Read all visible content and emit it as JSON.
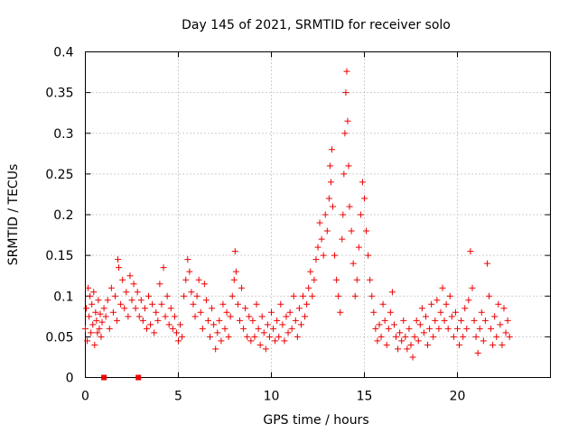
{
  "chart_data": {
    "type": "scatter",
    "title": "Day 145 of 2021, SRMTID for receiver solo",
    "xlabel": "GPS time / hours",
    "ylabel": "SRMTID / TECUs",
    "xlim": [
      0,
      25
    ],
    "ylim": [
      0,
      0.4
    ],
    "xticks": [
      0,
      5,
      10,
      15,
      20
    ],
    "xtick_labels": [
      "0",
      "5",
      "10",
      "15",
      "20"
    ],
    "yticks": [
      0,
      0.05,
      0.1,
      0.15,
      0.2,
      0.25,
      0.3,
      0.35,
      0.4
    ],
    "ytick_labels": [
      "0",
      "0.05",
      "0.1",
      "0.15",
      "0.2",
      "0.25",
      "0.3",
      "0.35",
      "0.4"
    ],
    "grid": true,
    "marker": "plus",
    "color": "#ee0000",
    "series": [
      {
        "name": "SRMTID",
        "points": [
          [
            0.0,
            0.06
          ],
          [
            0.05,
            0.085
          ],
          [
            0.1,
            0.045
          ],
          [
            0.15,
            0.11
          ],
          [
            0.2,
            0.075
          ],
          [
            0.25,
            0.1
          ],
          [
            0.3,
            0.055
          ],
          [
            0.35,
            0.09
          ],
          [
            0.4,
            0.065
          ],
          [
            0.45,
            0.105
          ],
          [
            0.5,
            0.04
          ],
          [
            0.55,
            0.08
          ],
          [
            0.6,
            0.07
          ],
          [
            0.65,
            0.055
          ],
          [
            0.7,
            0.095
          ],
          [
            0.75,
            0.06
          ],
          [
            0.8,
            0.078
          ],
          [
            0.85,
            0.05
          ],
          [
            0.9,
            0.068
          ],
          [
            1.0,
            0.085
          ],
          [
            1.1,
            0.075
          ],
          [
            1.2,
            0.095
          ],
          [
            1.3,
            0.06
          ],
          [
            1.4,
            0.11
          ],
          [
            1.5,
            0.08
          ],
          [
            1.6,
            0.1
          ],
          [
            1.7,
            0.07
          ],
          [
            1.75,
            0.145
          ],
          [
            1.8,
            0.135
          ],
          [
            1.9,
            0.09
          ],
          [
            2.0,
            0.12
          ],
          [
            2.1,
            0.085
          ],
          [
            2.2,
            0.105
          ],
          [
            2.3,
            0.075
          ],
          [
            2.4,
            0.125
          ],
          [
            2.5,
            0.095
          ],
          [
            2.6,
            0.115
          ],
          [
            2.7,
            0.085
          ],
          [
            2.8,
            0.105
          ],
          [
            2.9,
            0.075
          ],
          [
            3.0,
            0.095
          ],
          [
            3.1,
            0.07
          ],
          [
            3.2,
            0.085
          ],
          [
            3.3,
            0.06
          ],
          [
            3.4,
            0.1
          ],
          [
            3.5,
            0.065
          ],
          [
            3.6,
            0.09
          ],
          [
            3.7,
            0.055
          ],
          [
            3.8,
            0.08
          ],
          [
            3.9,
            0.07
          ],
          [
            4.0,
            0.115
          ],
          [
            4.1,
            0.09
          ],
          [
            4.2,
            0.135
          ],
          [
            4.3,
            0.075
          ],
          [
            4.4,
            0.1
          ],
          [
            4.5,
            0.065
          ],
          [
            4.6,
            0.085
          ],
          [
            4.7,
            0.06
          ],
          [
            4.8,
            0.075
          ],
          [
            4.9,
            0.055
          ],
          [
            5.0,
            0.045
          ],
          [
            5.1,
            0.065
          ],
          [
            5.2,
            0.05
          ],
          [
            5.3,
            0.1
          ],
          [
            5.4,
            0.12
          ],
          [
            5.5,
            0.145
          ],
          [
            5.6,
            0.13
          ],
          [
            5.7,
            0.105
          ],
          [
            5.8,
            0.09
          ],
          [
            5.9,
            0.075
          ],
          [
            6.0,
            0.1
          ],
          [
            6.1,
            0.12
          ],
          [
            6.2,
            0.08
          ],
          [
            6.3,
            0.06
          ],
          [
            6.4,
            0.115
          ],
          [
            6.5,
            0.095
          ],
          [
            6.6,
            0.07
          ],
          [
            6.7,
            0.05
          ],
          [
            6.8,
            0.085
          ],
          [
            6.9,
            0.065
          ],
          [
            7.0,
            0.035
          ],
          [
            7.1,
            0.055
          ],
          [
            7.2,
            0.07
          ],
          [
            7.3,
            0.045
          ],
          [
            7.4,
            0.09
          ],
          [
            7.5,
            0.06
          ],
          [
            7.6,
            0.08
          ],
          [
            7.7,
            0.05
          ],
          [
            7.8,
            0.075
          ],
          [
            7.9,
            0.1
          ],
          [
            8.0,
            0.12
          ],
          [
            8.05,
            0.155
          ],
          [
            8.1,
            0.13
          ],
          [
            8.2,
            0.09
          ],
          [
            8.3,
            0.07
          ],
          [
            8.4,
            0.11
          ],
          [
            8.5,
            0.06
          ],
          [
            8.6,
            0.085
          ],
          [
            8.7,
            0.05
          ],
          [
            8.8,
            0.075
          ],
          [
            8.9,
            0.045
          ],
          [
            9.0,
            0.07
          ],
          [
            9.1,
            0.05
          ],
          [
            9.2,
            0.09
          ],
          [
            9.3,
            0.06
          ],
          [
            9.4,
            0.04
          ],
          [
            9.5,
            0.075
          ],
          [
            9.6,
            0.055
          ],
          [
            9.7,
            0.035
          ],
          [
            9.8,
            0.065
          ],
          [
            9.9,
            0.05
          ],
          [
            10.0,
            0.08
          ],
          [
            10.1,
            0.06
          ],
          [
            10.2,
            0.045
          ],
          [
            10.3,
            0.07
          ],
          [
            10.4,
            0.05
          ],
          [
            10.5,
            0.09
          ],
          [
            10.6,
            0.065
          ],
          [
            10.7,
            0.045
          ],
          [
            10.8,
            0.075
          ],
          [
            10.9,
            0.055
          ],
          [
            11.0,
            0.08
          ],
          [
            11.1,
            0.06
          ],
          [
            11.2,
            0.1
          ],
          [
            11.3,
            0.07
          ],
          [
            11.4,
            0.05
          ],
          [
            11.5,
            0.085
          ],
          [
            11.6,
            0.065
          ],
          [
            11.7,
            0.1
          ],
          [
            11.8,
            0.075
          ],
          [
            11.9,
            0.09
          ],
          [
            12.0,
            0.11
          ],
          [
            12.1,
            0.13
          ],
          [
            12.2,
            0.1
          ],
          [
            12.3,
            0.12
          ],
          [
            12.4,
            0.145
          ],
          [
            12.5,
            0.16
          ],
          [
            12.6,
            0.19
          ],
          [
            12.7,
            0.17
          ],
          [
            12.8,
            0.15
          ],
          [
            12.9,
            0.2
          ],
          [
            13.0,
            0.18
          ],
          [
            13.1,
            0.22
          ],
          [
            13.15,
            0.26
          ],
          [
            13.2,
            0.24
          ],
          [
            13.25,
            0.28
          ],
          [
            13.3,
            0.21
          ],
          [
            13.4,
            0.15
          ],
          [
            13.5,
            0.12
          ],
          [
            13.6,
            0.1
          ],
          [
            13.7,
            0.08
          ],
          [
            13.8,
            0.17
          ],
          [
            13.85,
            0.2
          ],
          [
            13.9,
            0.25
          ],
          [
            13.95,
            0.3
          ],
          [
            14.0,
            0.35
          ],
          [
            14.05,
            0.376
          ],
          [
            14.1,
            0.315
          ],
          [
            14.15,
            0.26
          ],
          [
            14.2,
            0.21
          ],
          [
            14.3,
            0.18
          ],
          [
            14.4,
            0.14
          ],
          [
            14.5,
            0.1
          ],
          [
            14.6,
            0.12
          ],
          [
            14.7,
            0.16
          ],
          [
            14.8,
            0.2
          ],
          [
            14.9,
            0.24
          ],
          [
            15.0,
            0.22
          ],
          [
            15.1,
            0.18
          ],
          [
            15.2,
            0.15
          ],
          [
            15.3,
            0.12
          ],
          [
            15.4,
            0.1
          ],
          [
            15.5,
            0.08
          ],
          [
            15.6,
            0.06
          ],
          [
            15.7,
            0.045
          ],
          [
            15.8,
            0.065
          ],
          [
            15.9,
            0.05
          ],
          [
            16.0,
            0.09
          ],
          [
            16.1,
            0.07
          ],
          [
            16.2,
            0.04
          ],
          [
            16.3,
            0.06
          ],
          [
            16.4,
            0.08
          ],
          [
            16.5,
            0.105
          ],
          [
            16.6,
            0.065
          ],
          [
            16.7,
            0.05
          ],
          [
            16.8,
            0.035
          ],
          [
            16.9,
            0.055
          ],
          [
            17.0,
            0.045
          ],
          [
            17.1,
            0.07
          ],
          [
            17.2,
            0.05
          ],
          [
            17.3,
            0.035
          ],
          [
            17.4,
            0.06
          ],
          [
            17.5,
            0.04
          ],
          [
            17.6,
            0.025
          ],
          [
            17.7,
            0.05
          ],
          [
            17.8,
            0.07
          ],
          [
            17.9,
            0.045
          ],
          [
            18.0,
            0.065
          ],
          [
            18.1,
            0.085
          ],
          [
            18.2,
            0.055
          ],
          [
            18.3,
            0.075
          ],
          [
            18.4,
            0.04
          ],
          [
            18.5,
            0.06
          ],
          [
            18.6,
            0.09
          ],
          [
            18.7,
            0.05
          ],
          [
            18.8,
            0.07
          ],
          [
            18.9,
            0.095
          ],
          [
            19.0,
            0.06
          ],
          [
            19.1,
            0.08
          ],
          [
            19.2,
            0.11
          ],
          [
            19.3,
            0.07
          ],
          [
            19.4,
            0.09
          ],
          [
            19.5,
            0.06
          ],
          [
            19.6,
            0.1
          ],
          [
            19.7,
            0.075
          ],
          [
            19.8,
            0.05
          ],
          [
            19.9,
            0.08
          ],
          [
            20.0,
            0.06
          ],
          [
            20.1,
            0.04
          ],
          [
            20.2,
            0.07
          ],
          [
            20.3,
            0.05
          ],
          [
            20.4,
            0.085
          ],
          [
            20.5,
            0.06
          ],
          [
            20.6,
            0.095
          ],
          [
            20.7,
            0.155
          ],
          [
            20.8,
            0.11
          ],
          [
            20.9,
            0.07
          ],
          [
            21.0,
            0.05
          ],
          [
            21.1,
            0.03
          ],
          [
            21.2,
            0.06
          ],
          [
            21.3,
            0.08
          ],
          [
            21.4,
            0.045
          ],
          [
            21.5,
            0.07
          ],
          [
            21.6,
            0.14
          ],
          [
            21.7,
            0.1
          ],
          [
            21.8,
            0.06
          ],
          [
            21.9,
            0.04
          ],
          [
            22.0,
            0.075
          ],
          [
            22.1,
            0.05
          ],
          [
            22.2,
            0.09
          ],
          [
            22.3,
            0.065
          ],
          [
            22.4,
            0.04
          ],
          [
            22.5,
            0.085
          ],
          [
            22.6,
            0.055
          ],
          [
            22.7,
            0.07
          ],
          [
            22.8,
            0.05
          ]
        ]
      }
    ],
    "gap_markers": [
      {
        "x": 1.0,
        "y": 0
      },
      {
        "x": 2.85,
        "y": 0
      }
    ]
  }
}
